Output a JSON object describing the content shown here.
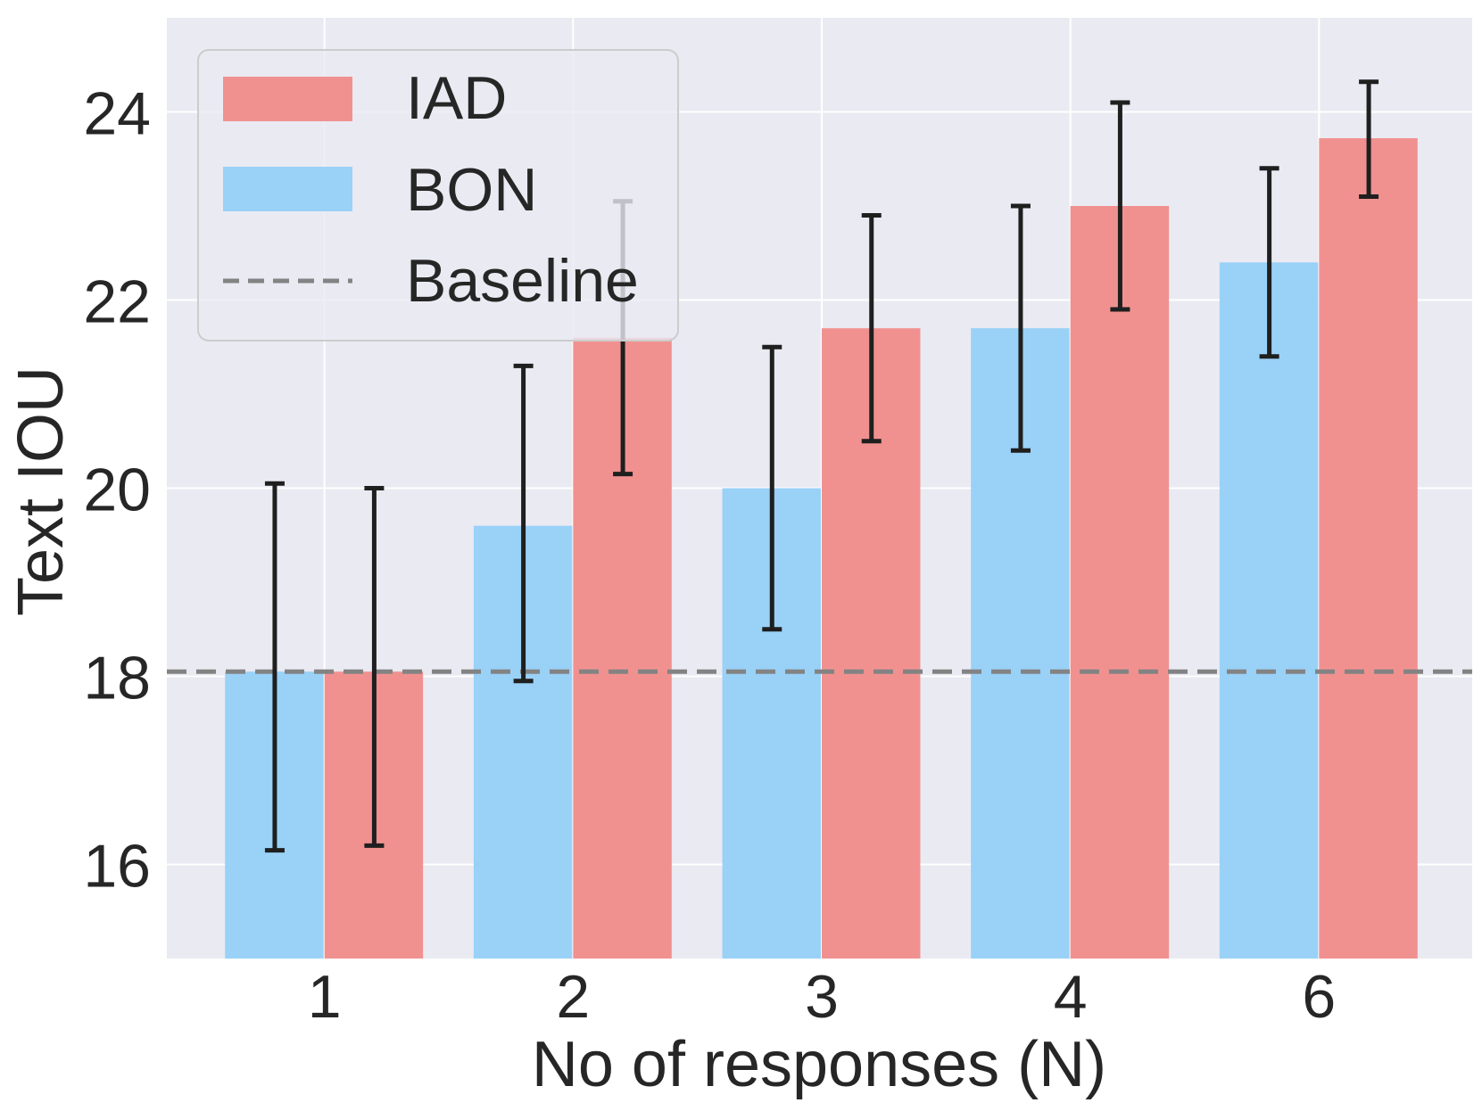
{
  "chart_data": {
    "type": "bar",
    "xlabel": "No of responses (N)",
    "ylabel": "Text IOU",
    "categories": [
      "1",
      "2",
      "3",
      "4",
      "6"
    ],
    "ylim": [
      15,
      25
    ],
    "yticks": [
      "16",
      "18",
      "20",
      "22",
      "24"
    ],
    "grid": true,
    "legend_position": "top-left",
    "series": [
      {
        "name": "BON",
        "color": "#99d1f7",
        "values": [
          18.05,
          19.6,
          20.0,
          21.7,
          22.4
        ],
        "err_low": [
          16.15,
          17.95,
          18.5,
          20.4,
          21.4
        ],
        "err_high": [
          20.05,
          21.3,
          21.5,
          23.0,
          23.4
        ]
      },
      {
        "name": "IAD",
        "color": "#f09190",
        "values": [
          18.05,
          21.6,
          21.7,
          23.0,
          23.72
        ],
        "err_low": [
          16.2,
          20.15,
          20.5,
          21.9,
          23.1
        ],
        "err_high": [
          20.0,
          23.05,
          22.9,
          24.1,
          24.32
        ]
      }
    ],
    "baseline": {
      "name": "Baseline",
      "value": 18.05,
      "color": "#838383"
    }
  }
}
